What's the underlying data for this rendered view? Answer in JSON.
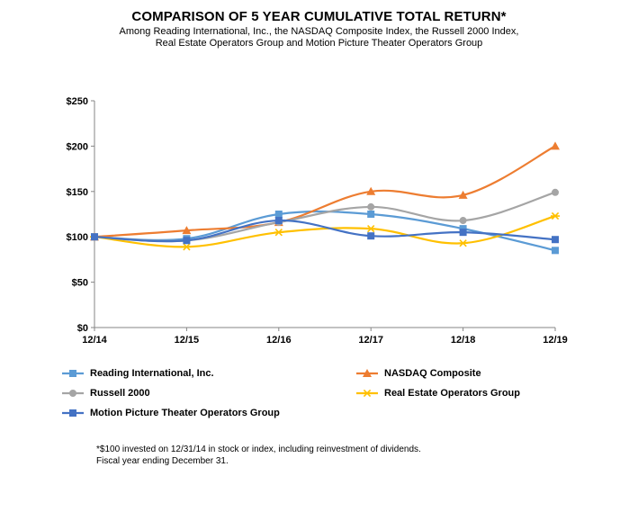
{
  "chart_data": {
    "type": "line",
    "title": "COMPARISON OF 5 YEAR CUMULATIVE TOTAL RETURN*",
    "subtitle_lines": [
      "Among Reading International, Inc., the NASDAQ  Composite Index, the Russell 2000 Index,",
      "Real Estate Operators Group and Motion Picture Theater Operators Group"
    ],
    "categories": [
      "12/14",
      "12/15",
      "12/16",
      "12/17",
      "12/18",
      "12/19"
    ],
    "y_ticks": [
      "$0",
      "$50",
      "$100",
      "$150",
      "$200",
      "$250"
    ],
    "ylim": [
      0,
      250
    ],
    "series": [
      {
        "name": "Reading International, Inc.",
        "color": "#5b9bd5",
        "marker": "square",
        "values": [
          100,
          98,
          125,
          125,
          109,
          85
        ]
      },
      {
        "name": "NASDAQ Composite",
        "color": "#ed7d31",
        "marker": "triangle",
        "values": [
          100,
          107,
          116,
          150,
          146,
          200
        ]
      },
      {
        "name": "Russell 2000",
        "color": "#a5a5a5",
        "marker": "circle",
        "values": [
          100,
          96,
          116,
          133,
          118,
          149
        ]
      },
      {
        "name": "Real Estate Operators Group",
        "color": "#ffc000",
        "marker": "star",
        "values": [
          100,
          89,
          105,
          109,
          93,
          123
        ]
      },
      {
        "name": "Motion Picture Theater Operators Group",
        "color": "#4472c4",
        "marker": "square",
        "values": [
          100,
          96,
          118,
          101,
          105,
          97
        ]
      }
    ],
    "footnotes": [
      "*$100 invested on 12/31/14 in stock or index, including reinvestment of dividends.",
      "Fiscal year ending December 31."
    ]
  }
}
